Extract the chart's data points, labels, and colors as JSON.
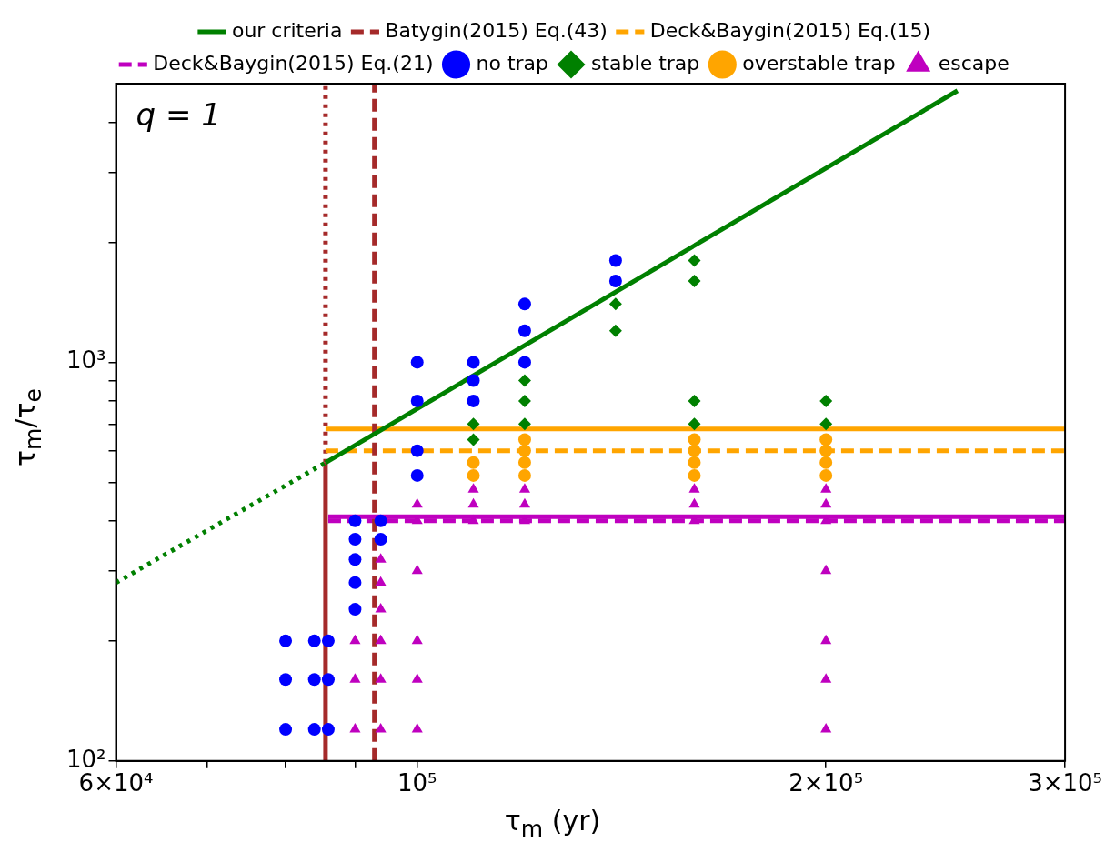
{
  "chart_data": {
    "type": "scatter",
    "xlabel": "τ$_{m}$ (yr)",
    "ylabel": "τ$_{m}$/τ$_{e}$",
    "log": "xy",
    "grid": false,
    "legend": "top",
    "xlim": [
      60000,
      300000
    ],
    "ylim": [
      100,
      5000
    ],
    "xticks": [
      {
        "value": 60000,
        "label": "6×10⁴"
      },
      {
        "value": 70000,
        "label": null
      },
      {
        "value": 80000,
        "label": null
      },
      {
        "value": 90000,
        "label": null
      },
      {
        "value": 100000,
        "label": "10⁵"
      },
      {
        "value": 200000,
        "label": "2×10⁵"
      },
      {
        "value": 300000,
        "label": "3×10⁵"
      }
    ],
    "yticks": [
      {
        "value": 100,
        "label": "10²"
      },
      {
        "value": 200,
        "label": null
      },
      {
        "value": 300,
        "label": null
      },
      {
        "value": 400,
        "label": null
      },
      {
        "value": 500,
        "label": null
      },
      {
        "value": 600,
        "label": null
      },
      {
        "value": 700,
        "label": null
      },
      {
        "value": 800,
        "label": null
      },
      {
        "value": 900,
        "label": null
      },
      {
        "value": 1000,
        "label": "10³"
      },
      {
        "value": 2000,
        "label": null
      },
      {
        "value": 3000,
        "label": null
      },
      {
        "value": 4000,
        "label": null
      }
    ],
    "annotations": [
      "q = 1"
    ],
    "series": [
      {
        "name": "our criteria",
        "type": "line",
        "color": "#008000",
        "marker": "none",
        "line_style": "solid",
        "x": [
          85600,
          250000
        ],
        "values": [
          560,
          4800
        ]
      },
      {
        "name": "Batygin(2015) Eq.(43)",
        "type": "line",
        "color": "#a52a2a",
        "marker": "none",
        "line_style": "dashed",
        "x": [
          93000,
          93000
        ],
        "values": [
          100,
          5000
        ]
      },
      {
        "name": "Deck&Baygin(2015) Eq.(15)",
        "type": "line",
        "color": "#ffa500",
        "marker": "none",
        "line_style": "dashed",
        "x": [
          85600,
          300000
        ],
        "values": [
          600,
          600
        ]
      },
      {
        "name": "Deck&Baygin(2015) Eq.(21)",
        "type": "line",
        "color": "#bf00bf",
        "marker": "none",
        "line_style": "dashed",
        "x": [
          86000,
          300000
        ],
        "values": [
          400,
          400
        ]
      },
      {
        "name": "no trap",
        "type": "scatter",
        "color": "#0000ff",
        "marker": "circle",
        "x": [
          80000,
          80000,
          80000,
          84000,
          84000,
          84000,
          86000,
          86000,
          86000,
          90000,
          90000,
          90000,
          90000,
          90000,
          94000,
          94000,
          100000,
          100000,
          100000,
          100000,
          110000,
          110000,
          110000,
          120000,
          120000,
          120000,
          140000,
          140000
        ],
        "values": [
          200,
          160,
          120,
          200,
          160,
          120,
          200,
          160,
          120,
          400,
          360,
          320,
          280,
          240,
          400,
          360,
          1000,
          800,
          600,
          520,
          1000,
          900,
          800,
          1400,
          1200,
          1000,
          1800,
          1600
        ]
      },
      {
        "name": "stable trap",
        "type": "scatter",
        "color": "#008000",
        "marker": "diamond",
        "x": [
          110000,
          110000,
          120000,
          120000,
          120000,
          140000,
          140000,
          160000,
          160000,
          160000,
          160000,
          200000,
          200000
        ],
        "values": [
          700,
          640,
          900,
          800,
          700,
          1400,
          1200,
          1800,
          1600,
          800,
          700,
          800,
          700
        ]
      },
      {
        "name": "overstable trap",
        "type": "scatter",
        "color": "#ffa500",
        "marker": "circle",
        "x": [
          110000,
          110000,
          120000,
          120000,
          120000,
          120000,
          160000,
          160000,
          160000,
          160000,
          200000,
          200000,
          200000,
          200000
        ],
        "values": [
          560,
          520,
          640,
          600,
          560,
          520,
          640,
          600,
          560,
          520,
          640,
          600,
          560,
          520
        ]
      },
      {
        "name": "escape",
        "type": "scatter",
        "color": "#bf00bf",
        "marker": "triangle",
        "x": [
          90000,
          90000,
          90000,
          94000,
          94000,
          94000,
          94000,
          94000,
          94000,
          100000,
          100000,
          100000,
          100000,
          100000,
          100000,
          110000,
          110000,
          110000,
          120000,
          120000,
          120000,
          160000,
          160000,
          160000,
          200000,
          200000,
          200000,
          200000,
          200000,
          200000,
          200000
        ],
        "values": [
          200,
          160,
          120,
          320,
          280,
          240,
          200,
          160,
          120,
          440,
          400,
          300,
          200,
          160,
          120,
          480,
          440,
          400,
          480,
          440,
          400,
          480,
          440,
          400,
          480,
          440,
          400,
          300,
          200,
          160,
          120
        ]
      },
      {
        "type": "line",
        "color": "#008000",
        "marker": "none",
        "line_style": "dotted",
        "x": [
          60000,
          85600
        ],
        "values": [
          280,
          560
        ]
      },
      {
        "type": "line",
        "color": "#a52a2a",
        "marker": "none",
        "line_style": "solid",
        "x": [
          85600,
          85600
        ],
        "values": [
          100,
          560
        ]
      },
      {
        "type": "line",
        "color": "#a52a2a",
        "marker": "none",
        "line_style": "dotted",
        "x": [
          85600,
          85600
        ],
        "values": [
          560,
          5000
        ]
      },
      {
        "type": "line",
        "color": "#ffa500",
        "marker": "none",
        "line_style": "solid",
        "x": [
          85600,
          300000
        ],
        "values": [
          680,
          680
        ]
      },
      {
        "type": "line",
        "color": "#bf00bf",
        "marker": "none",
        "line_style": "solid",
        "x": [
          86000,
          300000
        ],
        "values": [
          410,
          410
        ]
      }
    ]
  }
}
